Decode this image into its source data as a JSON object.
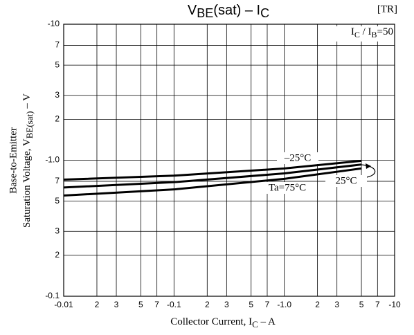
{
  "chart_data": {
    "type": "line",
    "title": [
      "V",
      "BE",
      "(sat)  –  I",
      "C"
    ],
    "tag": "[TR]",
    "condition": [
      "I",
      "C",
      " / I",
      "B",
      "=50"
    ],
    "x_label": [
      "Collector Current, I",
      "C",
      "  –  A"
    ],
    "y_label": {
      "line1": "Base-to-Emitter",
      "line2": [
        "Saturation Voltage, V",
        "BE(sat)",
        "  –  V"
      ]
    },
    "log_x": true,
    "log_y": true,
    "grid": true,
    "xlim": [
      -0.01,
      -10
    ],
    "ylim": [
      -0.1,
      -10
    ],
    "xticks": [
      -0.01,
      {
        "value": -0.02,
        "label": "2"
      },
      {
        "value": -0.03,
        "label": "3"
      },
      {
        "value": -0.05,
        "label": "5"
      },
      {
        "value": -0.07,
        "label": "7"
      },
      -0.1,
      {
        "value": -0.2,
        "label": "2"
      },
      {
        "value": -0.3,
        "label": "3"
      },
      {
        "value": -0.5,
        "label": "5"
      },
      {
        "value": -0.7,
        "label": "7"
      },
      {
        "value": -1,
        "label": "-1.0"
      },
      {
        "value": -2,
        "label": "2"
      },
      {
        "value": -3,
        "label": "3"
      },
      {
        "value": -5,
        "label": "5"
      },
      {
        "value": -7,
        "label": "7"
      },
      -10
    ],
    "yticks": [
      -0.1,
      {
        "value": -0.2,
        "label": "2"
      },
      {
        "value": -0.3,
        "label": "3"
      },
      {
        "value": -0.5,
        "label": "5"
      },
      {
        "value": -0.7,
        "label": "7"
      },
      {
        "value": -1,
        "label": "-1.0"
      },
      {
        "value": -2,
        "label": "2"
      },
      {
        "value": -3,
        "label": "3"
      },
      {
        "value": -5,
        "label": "5"
      },
      {
        "value": -7,
        "label": "7"
      },
      -10
    ],
    "x": [
      -0.01,
      -0.1,
      -1,
      -5
    ],
    "series": [
      {
        "name": "–25°C",
        "color": "#000000",
        "values": [
          -0.72,
          -0.77,
          -0.87,
          -0.99
        ]
      },
      {
        "name": "25°C",
        "color": "#000000",
        "values": [
          -0.63,
          -0.69,
          -0.8,
          -0.93
        ]
      },
      {
        "name": "Ta=75°C",
        "color": "#000000",
        "values": [
          -0.55,
          -0.61,
          -0.73,
          -0.87
        ]
      }
    ]
  }
}
